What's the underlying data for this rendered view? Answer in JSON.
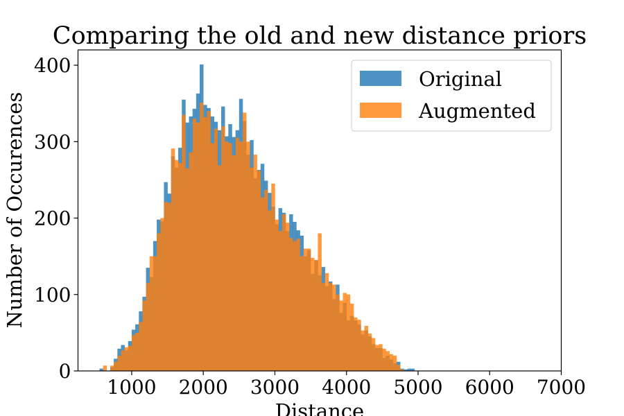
{
  "chart_data": {
    "type": "bar",
    "title": "Comparing the old and new distance priors",
    "xlabel": "Distance",
    "ylabel": "Number of Occurences",
    "xlim": [
      250,
      7000
    ],
    "ylim": [
      0,
      420
    ],
    "xticks": [
      1000,
      2000,
      3000,
      4000,
      5000,
      6000,
      7000
    ],
    "yticks": [
      0,
      100,
      200,
      300,
      400
    ],
    "grid": false,
    "legend_position": "top-right",
    "bin_start": 550,
    "bin_width": 50,
    "series": [
      {
        "name": "Original",
        "color": "#1f77b4",
        "values": [
          3,
          0,
          0,
          5,
          16,
          29,
          34,
          27,
          39,
          54,
          61,
          78,
          97,
          135,
          123,
          170,
          198,
          196,
          247,
          232,
          281,
          266,
          292,
          355,
          325,
          333,
          343,
          363,
          401,
          348,
          344,
          333,
          326,
          315,
          346,
          307,
          323,
          306,
          315,
          356,
          327,
          283,
          302,
          252,
          263,
          271,
          249,
          233,
          215,
          192,
          213,
          207,
          183,
          205,
          195,
          184,
          177,
          150,
          158,
          127,
          145,
          125,
          136,
          111,
          117,
          94,
          113,
          76,
          89,
          66,
          72,
          66,
          61,
          48,
          53,
          45,
          35,
          30,
          30,
          17,
          20,
          15,
          10,
          12,
          3,
          2,
          3,
          3,
          0
        ]
      },
      {
        "name": "Augmented",
        "color": "#ff7f0e",
        "values": [
          0,
          7,
          0,
          7,
          12,
          20,
          27,
          31,
          33,
          47,
          50,
          64,
          92,
          115,
          150,
          150,
          180,
          200,
          221,
          220,
          291,
          276,
          272,
          335,
          265,
          286,
          330,
          325,
          351,
          332,
          340,
          298,
          317,
          269,
          320,
          300,
          298,
          282,
          305,
          300,
          338,
          300,
          266,
          283,
          262,
          227,
          237,
          210,
          245,
          198,
          183,
          205,
          194,
          174,
          170,
          173,
          150,
          160,
          160,
          148,
          145,
          180,
          115,
          128,
          115,
          113,
          100,
          92,
          102,
          100,
          88,
          70,
          67,
          53,
          59,
          49,
          43,
          34,
          35,
          29,
          26,
          22,
          20,
          8,
          2,
          0,
          0,
          0,
          0
        ]
      }
    ]
  }
}
